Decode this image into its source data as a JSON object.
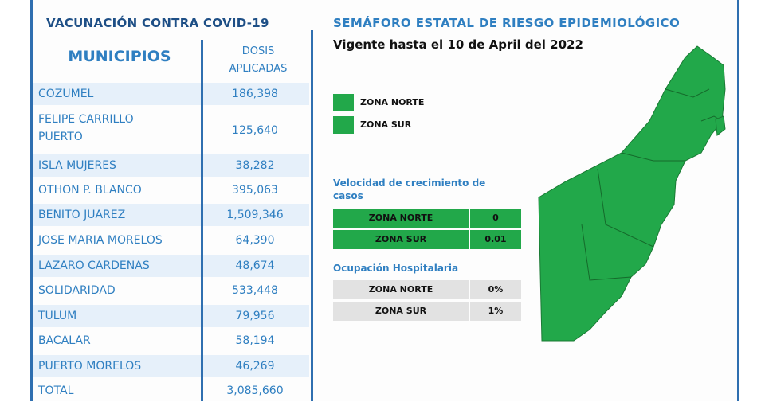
{
  "left": {
    "title": "VACUNACIÓN CONTRA COVID-19",
    "col_municipios": "MUNICIPIOS",
    "col_dosis_1": "DOSIS",
    "col_dosis_2": "APLICADAS",
    "rows": [
      {
        "name": "COZUMEL",
        "value": "186,398"
      },
      {
        "name": "FELIPE CARRILLO",
        "name2": "PUERTO",
        "value": "125,640"
      },
      {
        "name": "ISLA MUJERES",
        "value": "38,282"
      },
      {
        "name": "OTHON P. BLANCO",
        "value": "395,063"
      },
      {
        "name": "BENITO JUAREZ",
        "value": "1,509,346"
      },
      {
        "name": "JOSE MARIA MORELOS",
        "value": "64,390"
      },
      {
        "name": "LAZARO CARDENAS",
        "value": "48,674"
      },
      {
        "name": "SOLIDARIDAD",
        "value": "533,448"
      },
      {
        "name": "TULUM",
        "value": "79,956"
      },
      {
        "name": "BACALAR",
        "value": "58,194"
      },
      {
        "name": "PUERTO MORELOS",
        "value": "46,269"
      },
      {
        "name": "TOTAL",
        "value": "3,085,660"
      }
    ]
  },
  "right": {
    "title": "SEMÁFORO ESTATAL DE RIESGO EPIDEMIOLÓGICO",
    "subtitle": "Vigente hasta el 10 de April del 2022",
    "legend": [
      "ZONA NORTE",
      "ZONA SUR"
    ],
    "velocidad_title_1": "Velocidad de crecimiento de",
    "velocidad_title_2": "casos",
    "velocidad": [
      {
        "zona": "ZONA NORTE",
        "value": "0"
      },
      {
        "zona": "ZONA SUR",
        "value": "0.01"
      }
    ],
    "ocupacion_title": "Ocupación Hospitalaria",
    "ocupacion": [
      {
        "zona": "ZONA NORTE",
        "value": "0%"
      },
      {
        "zona": "ZONA SUR",
        "value": "1%"
      }
    ]
  },
  "colors": {
    "green": "#22a84a",
    "blue": "#2f7fc1",
    "navy": "#1e4f86",
    "shade": "#e6f0fa",
    "grey": "#e2e2e2"
  }
}
